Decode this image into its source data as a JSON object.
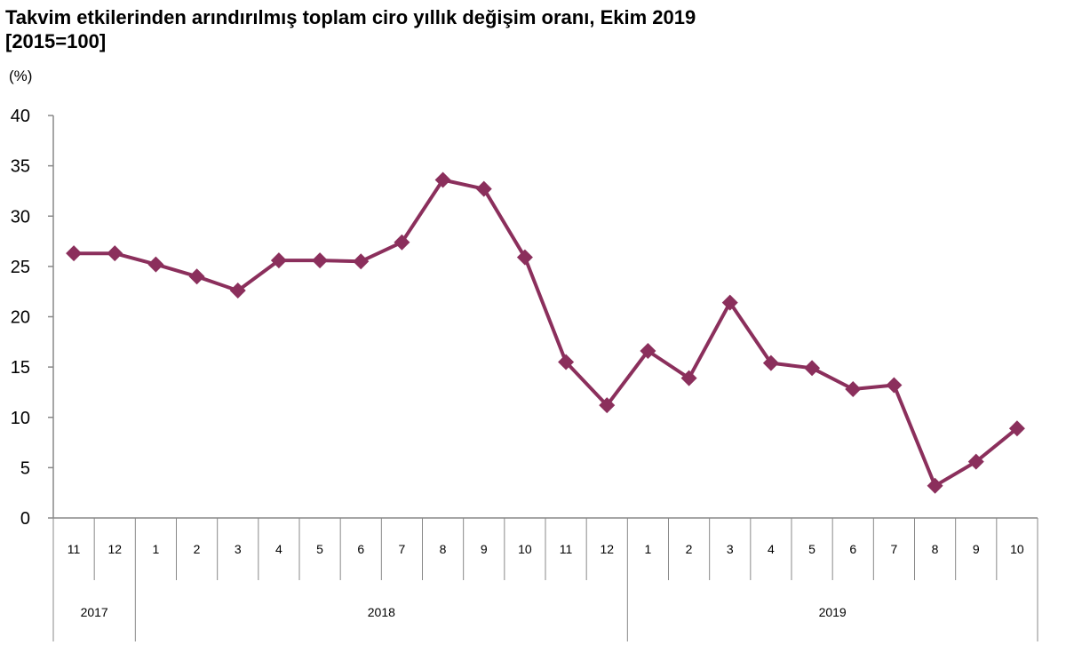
{
  "chart_data": {
    "type": "line",
    "title": "Takvim etkilerinden arındırılmış toplam ciro yıllık değişim oranı, Ekim 2019",
    "subtitle": "[2015=100]",
    "ylabel": "(%)",
    "xlabel": "",
    "ylim": [
      0,
      40
    ],
    "yticks": [
      "0",
      "5",
      "10",
      "15",
      "20",
      "25",
      "30",
      "35",
      "40"
    ],
    "grid": false,
    "categories": [
      "11",
      "12",
      "1",
      "2",
      "3",
      "4",
      "5",
      "6",
      "7",
      "8",
      "9",
      "10",
      "11",
      "12",
      "1",
      "2",
      "3",
      "4",
      "5",
      "6",
      "7",
      "8",
      "9",
      "10"
    ],
    "year_groups": [
      {
        "label": "2017",
        "count": 2
      },
      {
        "label": "2018",
        "count": 12
      },
      {
        "label": "2019",
        "count": 10
      }
    ],
    "series": [
      {
        "values": [
          26.3,
          26.3,
          25.2,
          24.0,
          22.6,
          25.6,
          25.6,
          25.5,
          27.4,
          33.6,
          32.7,
          25.9,
          15.5,
          11.2,
          16.6,
          13.9,
          21.4,
          15.4,
          14.9,
          12.8,
          13.2,
          3.2,
          5.6,
          8.9
        ],
        "color": "#8B2F5C"
      }
    ]
  }
}
